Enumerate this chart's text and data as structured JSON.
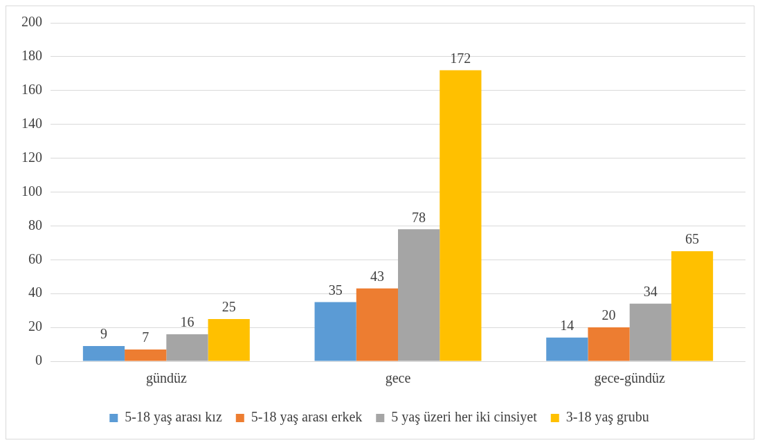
{
  "chart_data": {
    "type": "bar",
    "categories": [
      "gündüz",
      "gece",
      "gece-gündüz"
    ],
    "series": [
      {
        "name": "5-18 yaş arası kız",
        "color": "#5b9bd5",
        "values": [
          9,
          35,
          14
        ]
      },
      {
        "name": "5-18 yaş arası erkek",
        "color": "#ed7d31",
        "values": [
          7,
          43,
          20
        ]
      },
      {
        "name": "5 yaş üzeri her iki cinsiyet",
        "color": "#a5a5a5",
        "values": [
          16,
          78,
          34
        ]
      },
      {
        "name": "3-18 yaş grubu",
        "color": "#ffc000",
        "values": [
          25,
          172,
          65
        ]
      }
    ],
    "ylim": [
      0,
      200
    ],
    "yticks": [
      0,
      20,
      40,
      60,
      80,
      100,
      120,
      140,
      160,
      180,
      200
    ],
    "grid": "y",
    "legend": "bottom",
    "data_labels": true
  }
}
